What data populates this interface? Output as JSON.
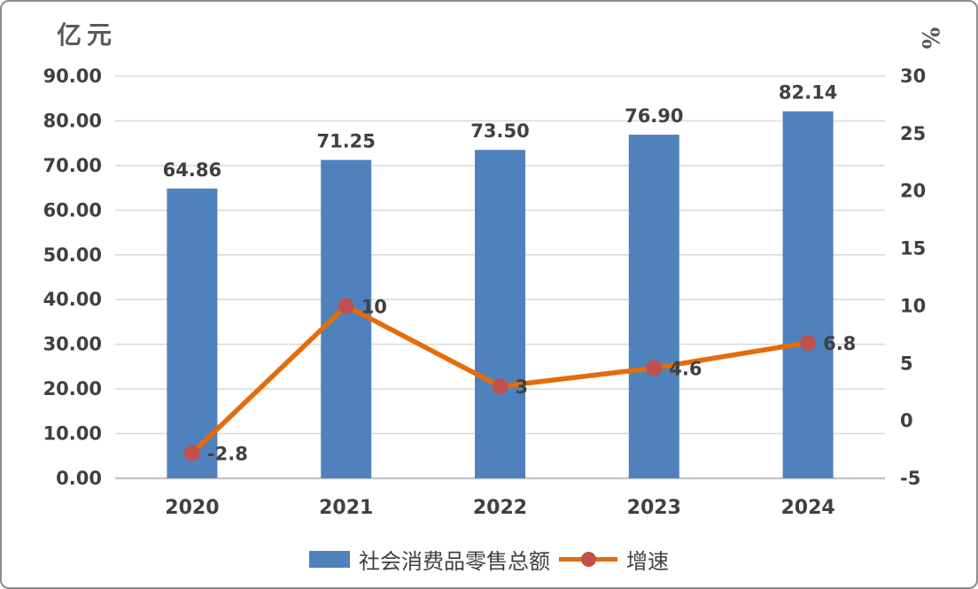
{
  "chart_data": {
    "type": "bar+line",
    "categories": [
      "2020",
      "2021",
      "2022",
      "2023",
      "2024"
    ],
    "series": [
      {
        "name": "社会消费品零售总额",
        "type": "bar",
        "axis": "left",
        "values": [
          64.86,
          71.25,
          73.5,
          76.9,
          82.14
        ],
        "data_labels": [
          "64.86",
          "71.25",
          "73.50",
          "76.90",
          "82.14"
        ],
        "color": "#4F81BD"
      },
      {
        "name": "增速",
        "type": "line",
        "axis": "right",
        "values": [
          -2.8,
          10,
          3,
          4.6,
          6.8
        ],
        "data_labels": [
          "-2.8",
          "10",
          "3",
          "4.6",
          "6.8"
        ],
        "color": "#E46C0A",
        "marker_color": "#C0504D"
      }
    ],
    "left_axis": {
      "title": "亿元",
      "min": 0,
      "max": 90,
      "tick_values": [
        90,
        80,
        70,
        60,
        50,
        40,
        30,
        20,
        10,
        0
      ],
      "tick_labels": [
        "90.00",
        "80.00",
        "70.00",
        "60.00",
        "50.00",
        "40.00",
        "30.00",
        "20.00",
        "10.00",
        "0.00"
      ]
    },
    "right_axis": {
      "title": "%",
      "min": -5,
      "max": 30,
      "tick_values": [
        30,
        25,
        20,
        15,
        10,
        5,
        0,
        -5
      ],
      "tick_labels": [
        "30",
        "25",
        "20",
        "15",
        "10",
        "5",
        "0",
        "-5"
      ]
    },
    "grid": true,
    "legend_position": "bottom",
    "title": ""
  },
  "colors": {
    "bar": "#4F81BD",
    "line": "#E46C0A",
    "marker": "#C0504D",
    "gridline": "#D9D9D9",
    "axis_line": "#C6C6C6",
    "text": "#404040",
    "background": "#FFFFFF"
  }
}
